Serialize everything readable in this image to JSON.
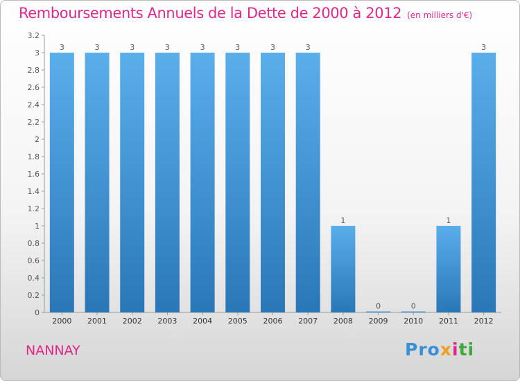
{
  "header": {
    "title": "Remboursements Annuels de la Dette de 2000 à 2012",
    "subtitle": "(en milliers d'€)"
  },
  "footer": {
    "town": "NANNAY",
    "logo": [
      {
        "char": "P",
        "color": "#3a8fd9"
      },
      {
        "char": "r",
        "color": "#3a8fd9"
      },
      {
        "char": "o",
        "color": "#3a8fd9"
      },
      {
        "char": "x",
        "color": "#f0a020"
      },
      {
        "char": "i",
        "color": "#e0288c"
      },
      {
        "char": "t",
        "color": "#3aaa3a"
      },
      {
        "char": "i",
        "color": "#3aaa3a"
      }
    ]
  },
  "colors": {
    "bar_light": "#5aaeea",
    "bar_dark": "#2a77b8",
    "title": "#e0288c"
  },
  "chart_data": {
    "type": "bar",
    "categories": [
      "2000",
      "2001",
      "2002",
      "2003",
      "2004",
      "2005",
      "2006",
      "2007",
      "2008",
      "2009",
      "2010",
      "2011",
      "2012"
    ],
    "values": [
      3,
      3,
      3,
      3,
      3,
      3,
      3,
      3,
      1,
      0,
      0,
      1,
      3
    ],
    "data_labels": [
      "3",
      "3",
      "3",
      "3",
      "3",
      "3",
      "3",
      "3",
      "1",
      "0",
      "0",
      "1",
      "3"
    ],
    "y_ticks": [
      "0",
      "0.2",
      "0.4",
      "0.6",
      "0.8",
      "1",
      "1.2",
      "1.4",
      "1.6",
      "1.8",
      "2",
      "2.2",
      "2.4",
      "2.6",
      "2.8",
      "3",
      "3.2"
    ],
    "ylim": [
      0,
      3.2
    ],
    "grid": false
  }
}
